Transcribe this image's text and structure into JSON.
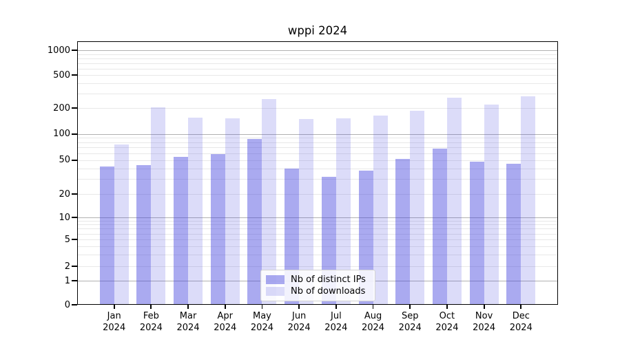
{
  "title": "wppi 2024",
  "chart_data": {
    "type": "bar",
    "title": "wppi 2024",
    "categories": [
      "Jan",
      "Feb",
      "Mar",
      "Apr",
      "May",
      "Jun",
      "Jul",
      "Aug",
      "Sep",
      "Oct",
      "Nov",
      "Dec"
    ],
    "x_tick_second_line": "2024",
    "series": [
      {
        "name": "Nb of distinct IPs",
        "color": "rgba(66,66,222,0.45)",
        "values": [
          42,
          44,
          54,
          59,
          88,
          40,
          32,
          38,
          52,
          68,
          48,
          45
        ]
      },
      {
        "name": "Nb of downloads",
        "color": "rgba(66,66,222,0.185)",
        "values": [
          76,
          205,
          156,
          153,
          260,
          150,
          153,
          164,
          186,
          270,
          220,
          280
        ]
      }
    ],
    "y_axis": {
      "scale": "symlog",
      "tick_values": [
        0,
        1,
        2,
        5,
        10,
        20,
        50,
        100,
        200,
        500,
        1000
      ],
      "ylim": [
        0,
        1250
      ]
    },
    "grid": true,
    "legend_position": "lower center"
  },
  "colors": {
    "bar_dark": "rgba(66,66,222,0.45)",
    "bar_light": "rgba(66,66,222,0.185)",
    "grid_major": "#b0b0b0",
    "grid_minor": "#e8e8e8",
    "spine": "#000000",
    "background": "#ffffff"
  }
}
